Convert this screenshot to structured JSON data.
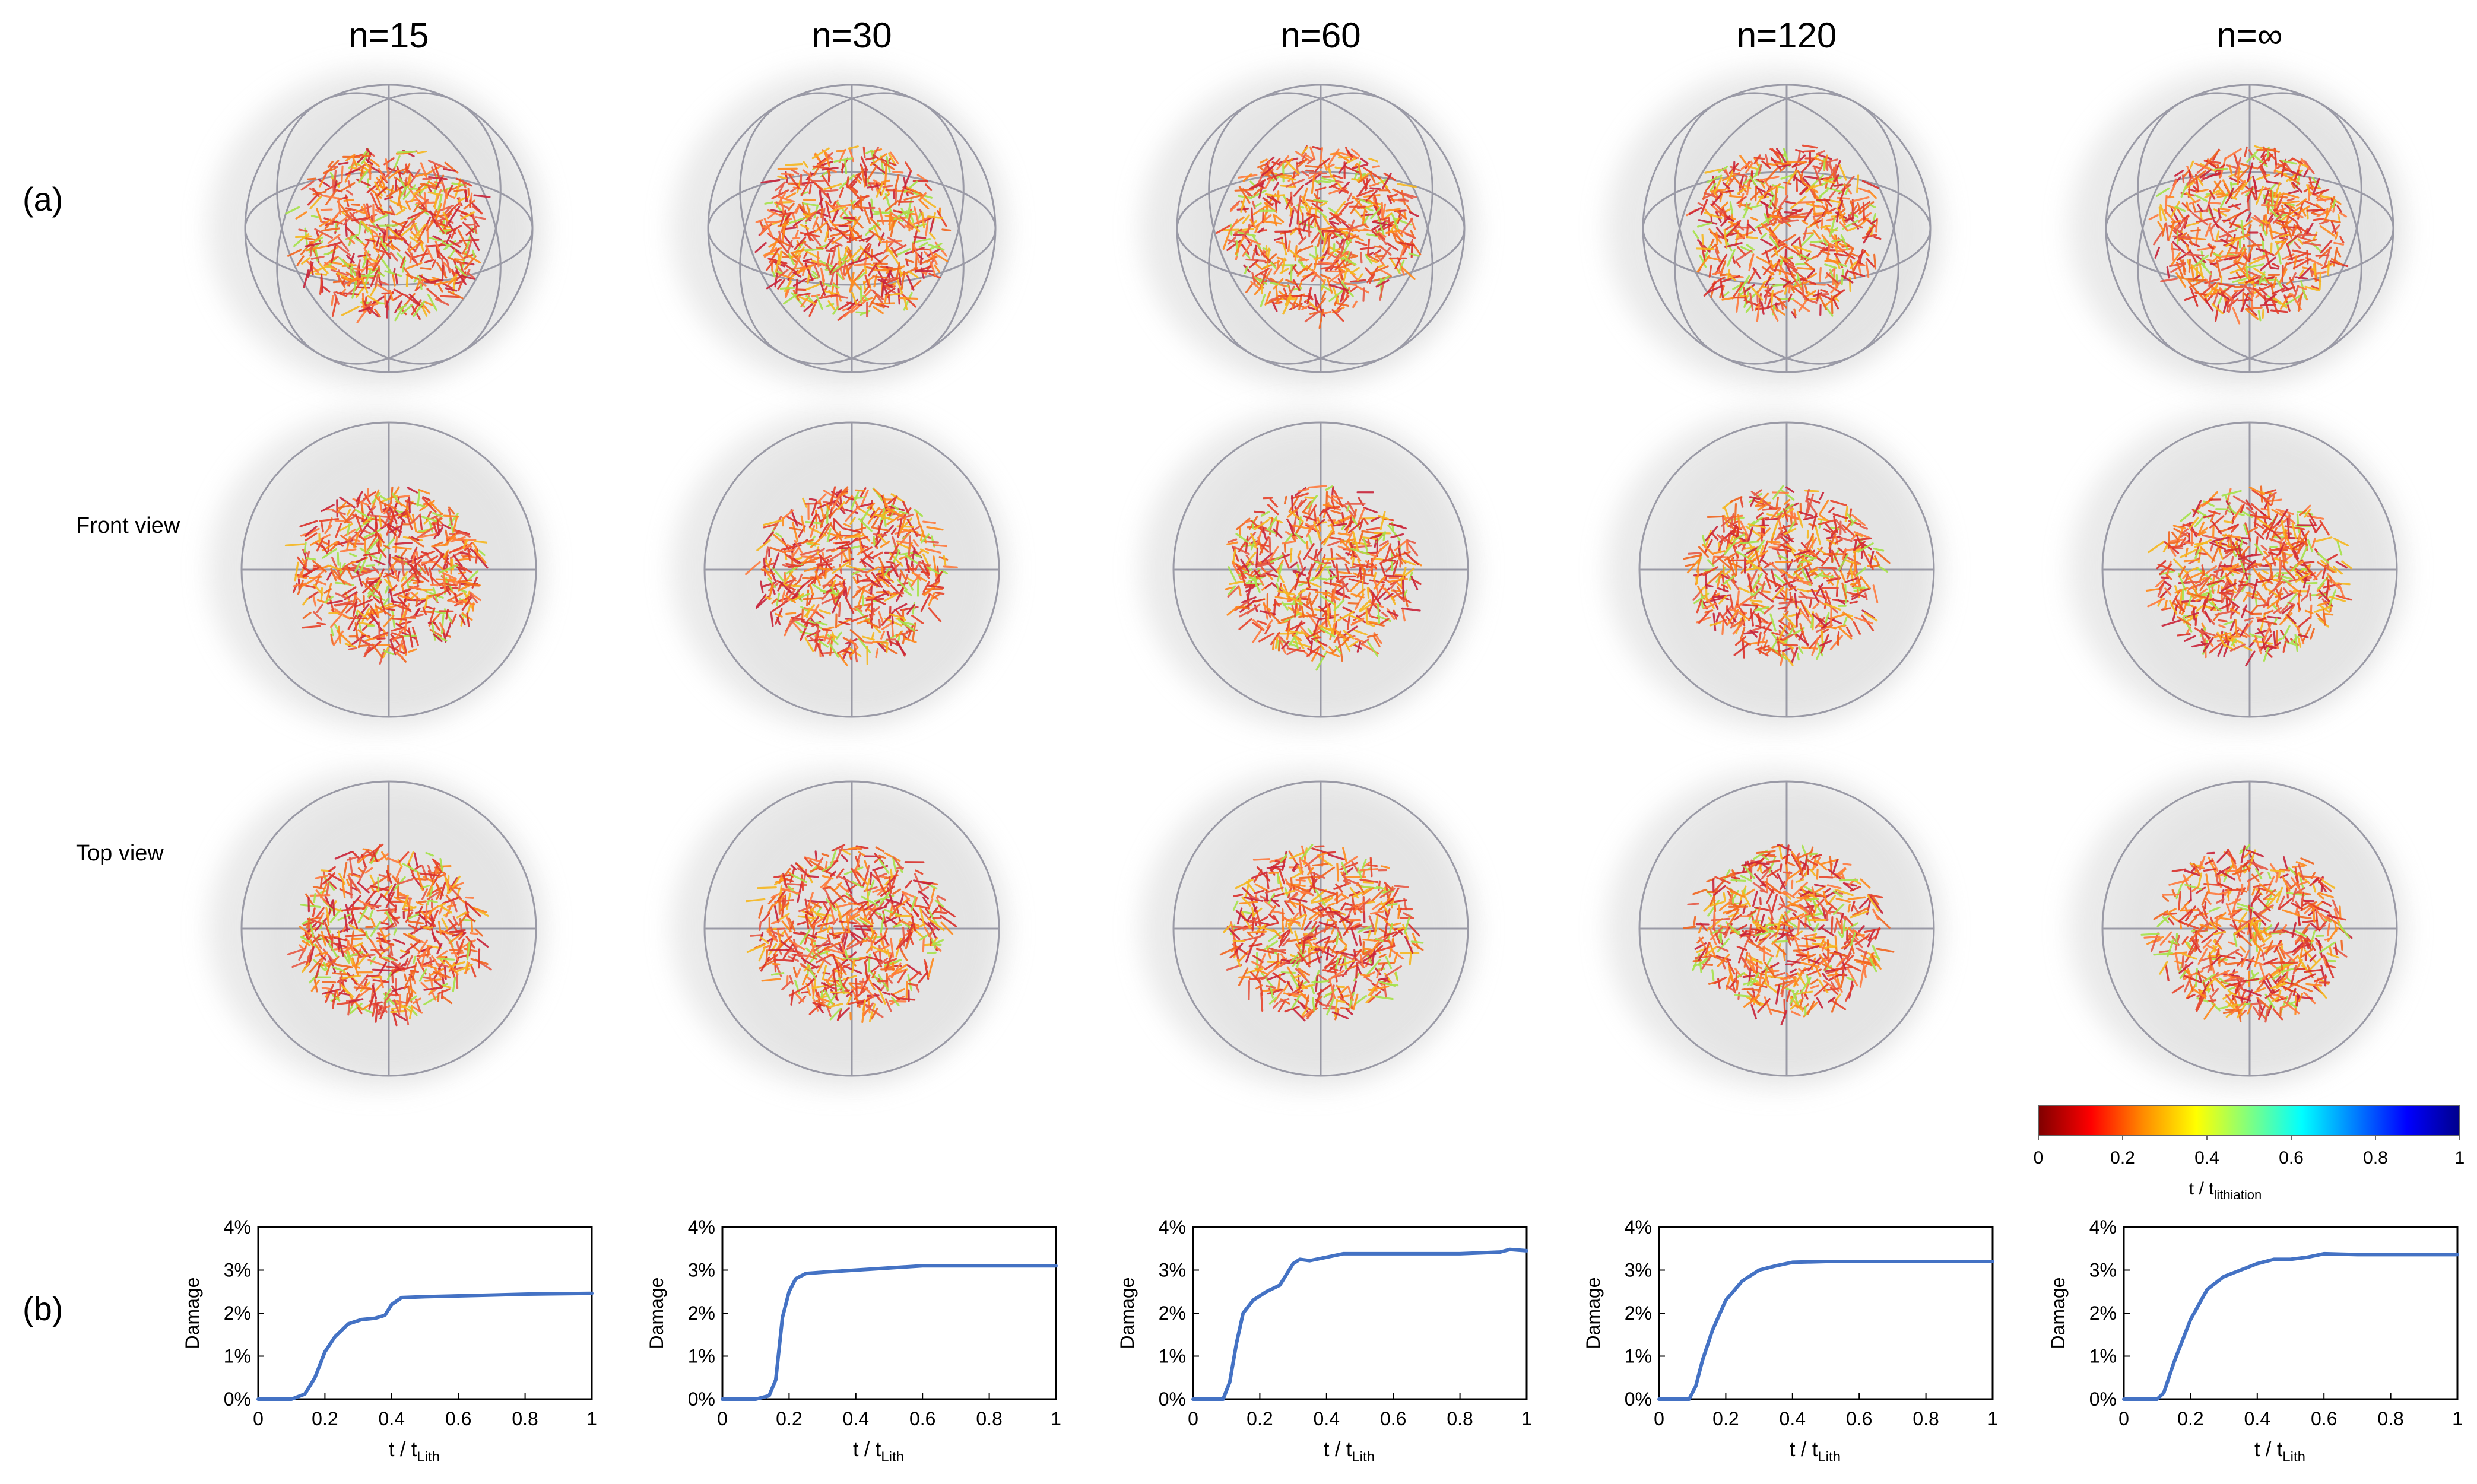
{
  "figure": {
    "panel_a_label": "(a)",
    "panel_b_label": "(b)",
    "row_labels": [
      "Front view",
      "Top view"
    ],
    "columns": [
      "n=15",
      "n=30",
      "n=60",
      "n=120",
      "n=∞"
    ],
    "colorbar": {
      "ticks": [
        "0",
        "0.2",
        "0.4",
        "0.6",
        "0.8",
        "1"
      ],
      "label_main": "t / t",
      "label_sub": "lithiation",
      "colormap": [
        "#7f0000",
        "#ff0000",
        "#ff8c00",
        "#ffff00",
        "#80ff80",
        "#00ffff",
        "#0080ff",
        "#0000ff",
        "#00008b"
      ]
    },
    "crack_colors": [
      "#e8442a",
      "#f2661f",
      "#d9302b",
      "#ff8a1c",
      "#f6b71f",
      "#e75a46",
      "#c9243a",
      "#a7e24b",
      "#ff7a3d"
    ],
    "render_colors": {
      "cloud": "#d9d9d9",
      "wireframe": "#9a9aa6",
      "curve": "#4472c4"
    }
  },
  "chart_data": [
    {
      "type": "line",
      "title": "n=15",
      "xlabel_main": "t / t",
      "xlabel_sub": "Lith",
      "ylabel": "Damage",
      "xlim": [
        0,
        1
      ],
      "ylim": [
        0,
        4
      ],
      "xticks": [
        "0",
        "0.2",
        "0.4",
        "0.6",
        "0.8",
        "1"
      ],
      "yticks": [
        "0%",
        "1%",
        "2%",
        "3%",
        "4%"
      ],
      "x": [
        0,
        0.1,
        0.14,
        0.17,
        0.2,
        0.23,
        0.27,
        0.31,
        0.35,
        0.38,
        0.4,
        0.43,
        0.5,
        0.6,
        0.7,
        0.8,
        0.9,
        1.0
      ],
      "y": [
        0,
        0,
        0.12,
        0.5,
        1.1,
        1.45,
        1.75,
        1.85,
        1.88,
        1.95,
        2.2,
        2.36,
        2.38,
        2.4,
        2.42,
        2.44,
        2.45,
        2.46
      ]
    },
    {
      "type": "line",
      "title": "n=30",
      "xlabel_main": "t / t",
      "xlabel_sub": "Lith",
      "ylabel": "Damage",
      "xlim": [
        0,
        1
      ],
      "ylim": [
        0,
        4
      ],
      "xticks": [
        "0",
        "0.2",
        "0.4",
        "0.6",
        "0.8",
        "1"
      ],
      "yticks": [
        "0%",
        "1%",
        "2%",
        "3%",
        "4%"
      ],
      "x": [
        0,
        0.1,
        0.14,
        0.16,
        0.18,
        0.2,
        0.22,
        0.25,
        0.3,
        0.4,
        0.5,
        0.6,
        0.8,
        1.0
      ],
      "y": [
        0,
        0,
        0.08,
        0.45,
        1.9,
        2.5,
        2.8,
        2.92,
        2.95,
        3.0,
        3.05,
        3.1,
        3.1,
        3.1
      ]
    },
    {
      "type": "line",
      "title": "n=60",
      "xlabel_main": "t / t",
      "xlabel_sub": "Lith",
      "ylabel": "Damage",
      "xlim": [
        0,
        1
      ],
      "ylim": [
        0,
        4
      ],
      "xticks": [
        "0",
        "0.2",
        "0.4",
        "0.6",
        "0.8",
        "1"
      ],
      "yticks": [
        "0%",
        "1%",
        "2%",
        "3%",
        "4%"
      ],
      "x": [
        0,
        0.09,
        0.11,
        0.13,
        0.15,
        0.18,
        0.22,
        0.26,
        0.3,
        0.32,
        0.35,
        0.4,
        0.45,
        0.6,
        0.8,
        0.92,
        0.95,
        1.0
      ],
      "y": [
        0,
        0,
        0.4,
        1.3,
        2.0,
        2.3,
        2.5,
        2.65,
        3.15,
        3.25,
        3.22,
        3.3,
        3.38,
        3.38,
        3.38,
        3.42,
        3.48,
        3.45
      ]
    },
    {
      "type": "line",
      "title": "n=120",
      "xlabel_main": "t / t",
      "xlabel_sub": "Lith",
      "ylabel": "Damage",
      "xlim": [
        0,
        1
      ],
      "ylim": [
        0,
        4
      ],
      "xticks": [
        "0",
        "0.2",
        "0.4",
        "0.6",
        "0.8",
        "1"
      ],
      "yticks": [
        "0%",
        "1%",
        "2%",
        "3%",
        "4%"
      ],
      "x": [
        0,
        0.09,
        0.11,
        0.13,
        0.16,
        0.2,
        0.25,
        0.3,
        0.35,
        0.4,
        0.5,
        0.7,
        1.0
      ],
      "y": [
        0,
        0,
        0.3,
        0.9,
        1.6,
        2.3,
        2.75,
        3.0,
        3.1,
        3.18,
        3.2,
        3.2,
        3.2
      ]
    },
    {
      "type": "line",
      "title": "n=∞",
      "xlabel_main": "t / t",
      "xlabel_sub": "Lith",
      "ylabel": "Damage",
      "xlim": [
        0,
        1
      ],
      "ylim": [
        0,
        4
      ],
      "xticks": [
        "0",
        "0.2",
        "0.4",
        "0.6",
        "0.8",
        "1"
      ],
      "yticks": [
        "0%",
        "1%",
        "2%",
        "3%",
        "4%"
      ],
      "x": [
        0,
        0.1,
        0.12,
        0.15,
        0.2,
        0.25,
        0.3,
        0.35,
        0.4,
        0.45,
        0.5,
        0.55,
        0.6,
        0.7,
        0.8,
        1.0
      ],
      "y": [
        0,
        0,
        0.15,
        0.85,
        1.85,
        2.55,
        2.85,
        3.0,
        3.15,
        3.25,
        3.25,
        3.3,
        3.38,
        3.36,
        3.36,
        3.36
      ]
    }
  ]
}
